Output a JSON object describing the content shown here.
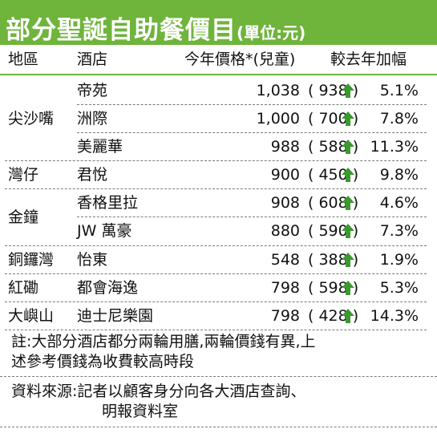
{
  "title": "部分聖誕自助餐價目",
  "unit": "(單位:元)",
  "headers": {
    "area": "地區",
    "hotel": "酒店",
    "price": "今年價格*(兒童)",
    "change": "較去年加幅"
  },
  "colors": {
    "accent": "#6fb43b",
    "arrow": "#3b9a2f"
  },
  "arrow_icon": "up-arrow-icon",
  "areas": [
    "尖沙嘴",
    "灣仔",
    "金鐘",
    "銅鑼灣",
    "紅磡",
    "大嶼山"
  ],
  "rows": [
    {
      "hotel": "帝苑",
      "price": "1,038",
      "kid": "( 938 )",
      "change": "5.1%"
    },
    {
      "hotel": "洲際",
      "price": "1,000",
      "kid": "( 700 )",
      "change": "7.8%"
    },
    {
      "hotel": "美麗華",
      "price": "988",
      "kid": "( 588 )",
      "change": "11.3%"
    },
    {
      "hotel": "君悅",
      "price": "900",
      "kid": "( 450 )",
      "change": "9.8%"
    },
    {
      "hotel": "香格里拉",
      "price": "908",
      "kid": "( 608 )",
      "change": "4.6%"
    },
    {
      "hotel": "JW 萬豪",
      "price": "880",
      "kid": "( 590 )",
      "change": "7.3%"
    },
    {
      "hotel": "怡東",
      "price": "548",
      "kid": "( 388 )",
      "change": "1.9%"
    },
    {
      "hotel": "都會海逸",
      "price": "798",
      "kid": "( 598 )",
      "change": "5.3%"
    },
    {
      "hotel": "迪士尼樂園",
      "price": "798",
      "kid": "( 428 )",
      "change": "14.3%"
    }
  ],
  "note": {
    "line1": "註:大部分酒店都分兩輪用膳,兩輪價錢有異,上",
    "line2": "述參考價錢為收費較高時段"
  },
  "source": {
    "line1": "資料來源:記者以顧客身分向各大酒店查詢、",
    "line2": "明報資料室"
  }
}
